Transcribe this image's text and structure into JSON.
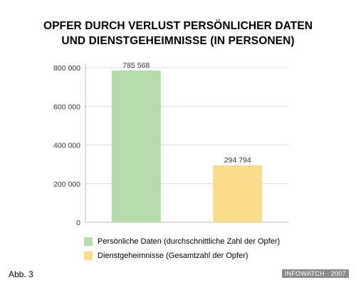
{
  "chart_data": {
    "type": "bar",
    "title_lines": [
      "OPFER DURCH VERLUST PERSÖNLICHER DATEN",
      "UND DIENSTGEHEIMNISSE (IN PERSONEN)"
    ],
    "categories": [
      "Persönliche Daten (durchschnittliche Zahl der Opfer)",
      "Dienstgeheimnisse (Gesamtzahl der Opfer)"
    ],
    "values": [
      785568,
      294794
    ],
    "value_labels": [
      "785 568",
      "294 794"
    ],
    "colors": [
      "#b5dcaa",
      "#fbdb8c"
    ],
    "ylim": [
      0,
      800000
    ],
    "yticks": [
      0,
      200000,
      400000,
      600000,
      800000
    ],
    "ytick_labels": [
      "0",
      "200 000",
      "400 000",
      "600 000",
      "800 000"
    ],
    "grid": true,
    "legend_position": "bottom"
  },
  "figure_label": "Abb. 3",
  "watermark": "INFOWATCH · 2007"
}
